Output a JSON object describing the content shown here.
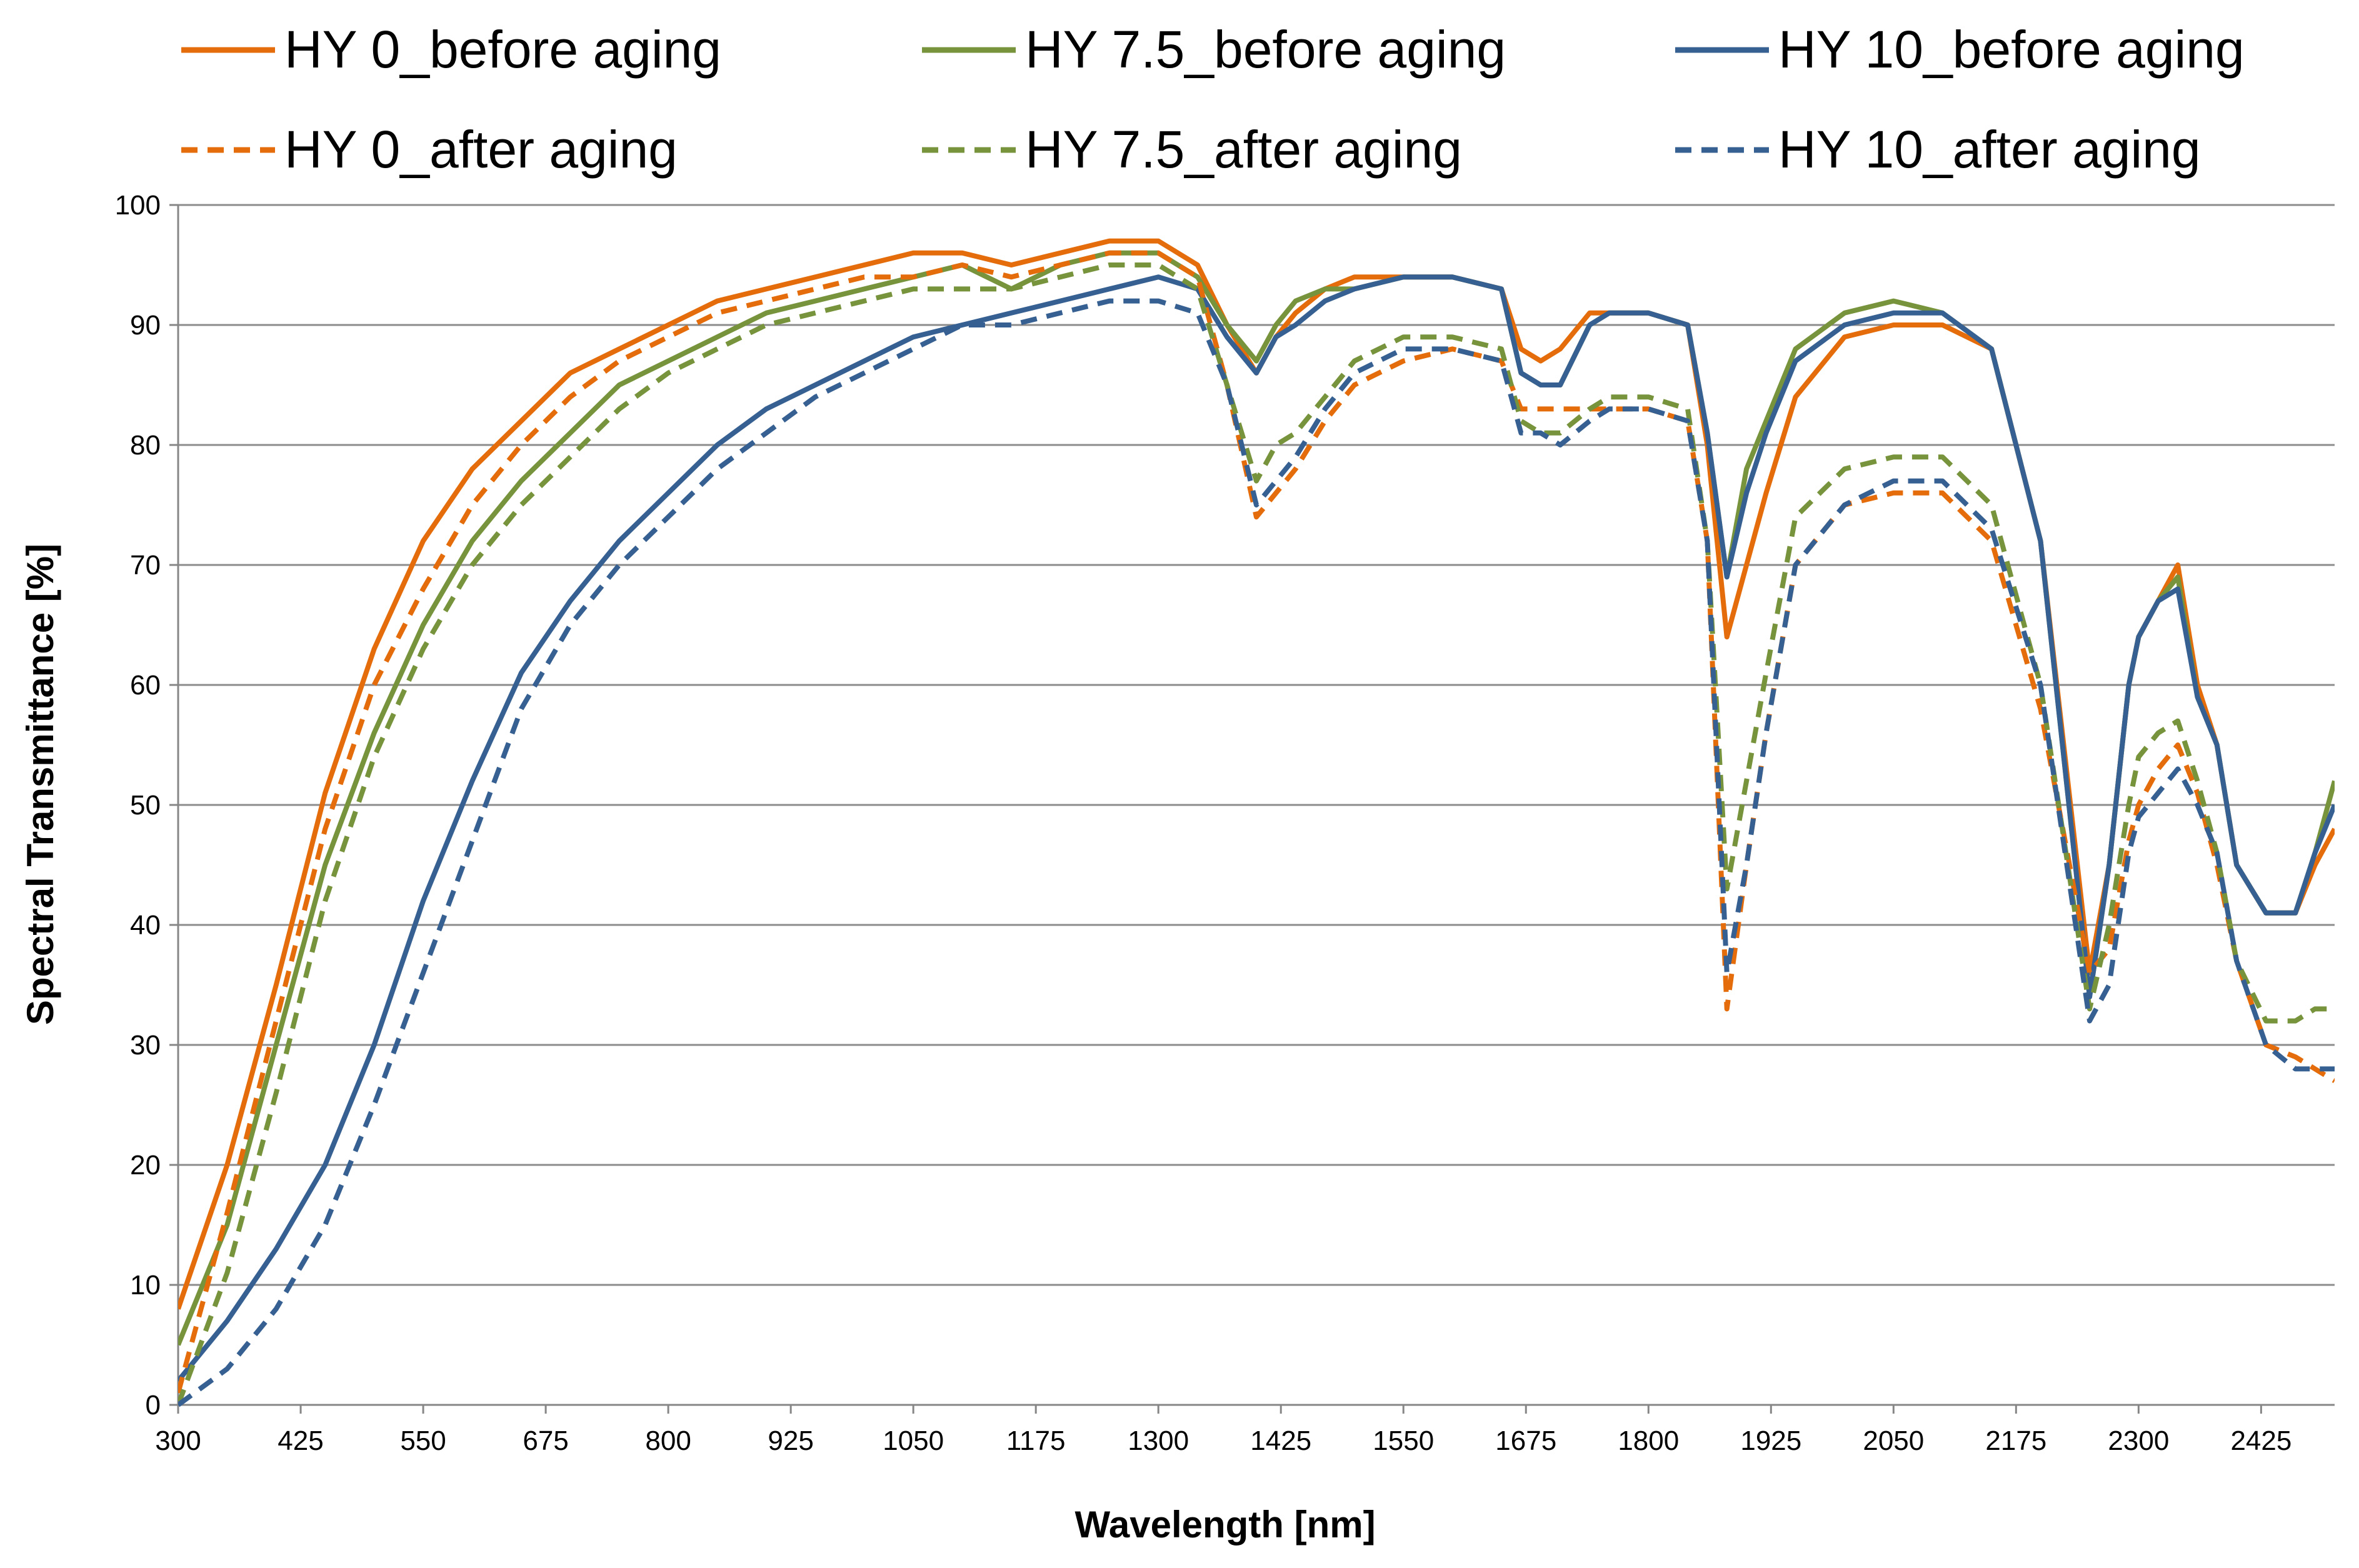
{
  "chart_data": {
    "type": "line",
    "title": "",
    "xlabel": "Wavelength [nm]",
    "ylabel": "Spectral Transmittance  [%]",
    "xlim": [
      300,
      2500
    ],
    "ylim": [
      0,
      100
    ],
    "x_ticks": [
      "300",
      "425",
      "550",
      "675",
      "800",
      "925",
      "1050",
      "1175",
      "1300",
      "1425",
      "1550",
      "1675",
      "1800",
      "1925",
      "2050",
      "2175",
      "2300",
      "2425"
    ],
    "y_ticks": [
      "0",
      "10",
      "20",
      "30",
      "40",
      "50",
      "60",
      "70",
      "80",
      "90",
      "100"
    ],
    "grid": "horizontal",
    "legend_position": "top",
    "colors": {
      "orange": "#E46C0A",
      "green": "#77933C",
      "blue": "#376092",
      "grid": "#8C8C8C",
      "axis": "#868686"
    },
    "x": [
      300,
      350,
      400,
      450,
      500,
      550,
      600,
      650,
      700,
      750,
      800,
      850,
      900,
      950,
      1000,
      1050,
      1100,
      1150,
      1200,
      1250,
      1300,
      1340,
      1370,
      1400,
      1420,
      1440,
      1470,
      1500,
      1550,
      1600,
      1650,
      1670,
      1690,
      1710,
      1740,
      1760,
      1800,
      1840,
      1860,
      1880,
      1900,
      1920,
      1950,
      2000,
      2050,
      2100,
      2150,
      2200,
      2250,
      2270,
      2290,
      2300,
      2320,
      2340,
      2360,
      2380,
      2400,
      2430,
      2460,
      2480,
      2500
    ],
    "series": [
      {
        "name": "HY 0_before aging",
        "style": "solid",
        "color": "#E46C0A",
        "values": [
          8,
          20,
          35,
          51,
          63,
          72,
          78,
          82,
          86,
          88,
          90,
          92,
          93,
          94,
          95,
          96,
          96,
          95,
          96,
          97,
          97,
          95,
          90,
          86,
          89,
          91,
          93,
          94,
          94,
          94,
          93,
          88,
          87,
          88,
          91,
          91,
          91,
          90,
          80,
          64,
          70,
          76,
          84,
          89,
          90,
          90,
          88,
          72,
          36,
          45,
          60,
          64,
          67,
          70,
          60,
          55,
          45,
          41,
          41,
          45,
          48
        ]
      },
      {
        "name": "HY 7.5_before aging",
        "style": "solid",
        "color": "#77933C",
        "values": [
          5,
          15,
          30,
          45,
          56,
          65,
          72,
          77,
          81,
          85,
          87,
          89,
          91,
          92,
          93,
          94,
          95,
          93,
          95,
          96,
          96,
          94,
          90,
          87,
          90,
          92,
          93,
          93,
          94,
          94,
          93,
          86,
          85,
          85,
          90,
          91,
          91,
          90,
          81,
          69,
          78,
          82,
          88,
          91,
          92,
          91,
          88,
          72,
          34,
          45,
          60,
          64,
          67,
          69,
          59,
          55,
          45,
          41,
          41,
          46,
          52
        ]
      },
      {
        "name": "HY 10_before aging",
        "style": "solid",
        "color": "#376092",
        "values": [
          2,
          7,
          13,
          20,
          30,
          42,
          52,
          61,
          67,
          72,
          76,
          80,
          83,
          85,
          87,
          89,
          90,
          91,
          92,
          93,
          94,
          93,
          89,
          86,
          89,
          90,
          92,
          93,
          94,
          94,
          93,
          86,
          85,
          85,
          90,
          91,
          91,
          90,
          81,
          69,
          76,
          81,
          87,
          90,
          91,
          91,
          88,
          72,
          34,
          45,
          60,
          64,
          67,
          68,
          59,
          55,
          45,
          41,
          41,
          46,
          50
        ]
      },
      {
        "name": "HY 0_after aging",
        "style": "dashed",
        "color": "#E46C0A",
        "values": [
          1,
          16,
          32,
          48,
          60,
          68,
          75,
          80,
          84,
          87,
          89,
          91,
          92,
          93,
          94,
          94,
          95,
          94,
          95,
          96,
          96,
          94,
          85,
          74,
          76,
          78,
          82,
          85,
          87,
          88,
          87,
          83,
          83,
          83,
          83,
          83,
          83,
          82,
          72,
          33,
          45,
          56,
          70,
          75,
          76,
          76,
          72,
          58,
          36,
          38,
          47,
          50,
          53,
          55,
          51,
          45,
          37,
          30,
          29,
          28,
          27
        ]
      },
      {
        "name": "HY 7.5_after aging",
        "style": "dashed",
        "color": "#77933C",
        "values": [
          0,
          11,
          26,
          42,
          54,
          63,
          70,
          75,
          79,
          83,
          86,
          88,
          90,
          91,
          92,
          93,
          93,
          93,
          94,
          95,
          95,
          93,
          85,
          77,
          80,
          81,
          84,
          87,
          89,
          89,
          88,
          82,
          81,
          81,
          83,
          84,
          84,
          83,
          72,
          43,
          52,
          61,
          74,
          78,
          79,
          79,
          75,
          60,
          33,
          40,
          50,
          54,
          56,
          57,
          52,
          46,
          37,
          32,
          32,
          33,
          33
        ]
      },
      {
        "name": "HY 10_after aging",
        "style": "dashed",
        "color": "#376092",
        "values": [
          0,
          3,
          8,
          15,
          25,
          36,
          47,
          58,
          65,
          70,
          74,
          78,
          81,
          84,
          86,
          88,
          90,
          90,
          91,
          92,
          92,
          91,
          85,
          75,
          77,
          79,
          83,
          86,
          88,
          88,
          87,
          81,
          81,
          80,
          82,
          83,
          83,
          82,
          72,
          36,
          45,
          56,
          70,
          75,
          77,
          77,
          73,
          60,
          32,
          35,
          46,
          49,
          51,
          53,
          50,
          46,
          37,
          30,
          28,
          28,
          28
        ]
      }
    ]
  }
}
